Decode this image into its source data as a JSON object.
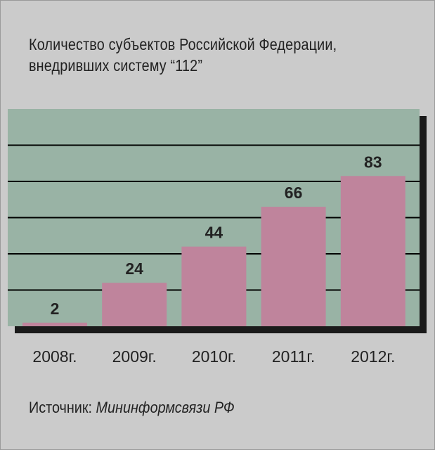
{
  "colors": {
    "background": "#cbcbcb",
    "plot_area": "#99b3a5",
    "bar": "#bf849c",
    "gridline": "#000000",
    "shadow": "#1a1a1a"
  },
  "chart_data": {
    "type": "bar",
    "title": "Количество субъектов Российской Федерации,",
    "subtitle": "внедривших систему “112”",
    "categories": [
      "2008г.",
      "2009г.",
      "2010г.",
      "2011г.",
      "2012г."
    ],
    "values": [
      2,
      24,
      44,
      66,
      83
    ],
    "data_labels": [
      "2",
      "24",
      "44",
      "66",
      "83"
    ],
    "ylim": [
      0,
      120
    ],
    "grid": true,
    "legend": "none",
    "xlabel": "",
    "ylabel": ""
  },
  "source": {
    "label": "Источник: ",
    "value": "Мининформсвязи РФ"
  }
}
